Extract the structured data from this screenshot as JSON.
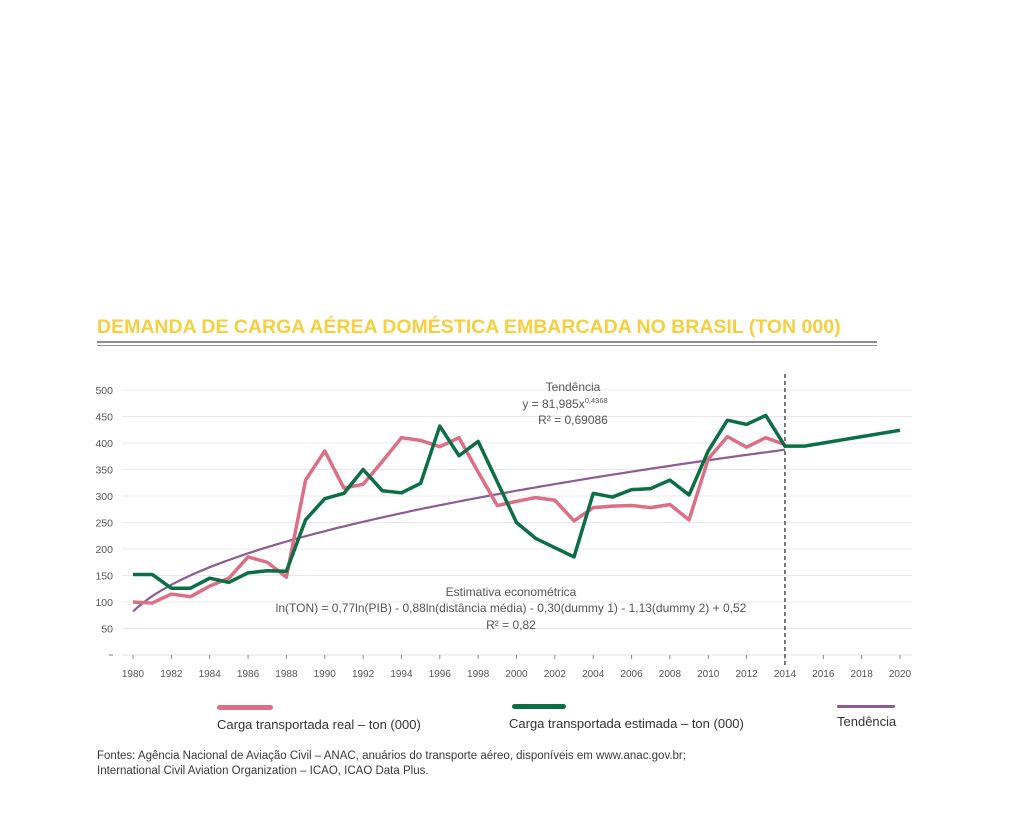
{
  "title": "DEMANDA DE CARGA AÉREA DOMÉSTICA EMBARCADA NO BRASIL (TON 000)",
  "annotations": {
    "trend_title": "Tendência",
    "trend_eq": "y = 81,985x",
    "trend_exp": "0,4368",
    "trend_r2": "R² = 0,69086",
    "econ_title": "Estimativa econométrica",
    "econ_eq": "ln(TON) = 0,77ln(PIB) - 0,88ln(distância média) - 0,30(dummy 1) - 1,13(dummy 2) + 0,52",
    "econ_r2": "R² = 0,82"
  },
  "legend": {
    "real": "Carga transportada real – ton (000)",
    "estimated": "Carga transportada estimada – ton (000)",
    "trend": "Tendência"
  },
  "source": {
    "line1": "Fontes: Agência Nacional de Aviação Civil – ANAC, anuários do transporte aéreo, disponíveis em www.anac.gov.br;",
    "line2": "International Civil Aviation Organization – ICAO, ICAO Data Plus."
  },
  "colors": {
    "title": "#f6cf3e",
    "real": "#dc6e85",
    "estimated": "#0b6e45",
    "trend": "#8e5a95",
    "grid": "#e8e8e8",
    "rule": "#8e8e8e"
  },
  "chart_data": {
    "type": "line",
    "xlim": [
      1980,
      2020
    ],
    "ylim": [
      0,
      500
    ],
    "y_ticks": [
      "50",
      "100",
      "150",
      "200",
      "250",
      "300",
      "350",
      "400",
      "450",
      "500"
    ],
    "x_ticks": [
      "1980",
      "1982",
      "1984",
      "1986",
      "1988",
      "1990",
      "1992",
      "1994",
      "1996",
      "1998",
      "2000",
      "2002",
      "2004",
      "2006",
      "2008",
      "2010",
      "2012",
      "2014",
      "2016",
      "2018",
      "2020"
    ],
    "grid": true,
    "forecast_divider_x": 2014,
    "series": [
      {
        "name": "Carga transportada real – ton (000)",
        "color": "#dc6e85",
        "x": [
          1980,
          1981,
          1982,
          1983,
          1984,
          1985,
          1986,
          1987,
          1988,
          1989,
          1990,
          1991,
          1992,
          1993,
          1994,
          1995,
          1996,
          1997,
          1998,
          1999,
          2000,
          2001,
          2002,
          2003,
          2004,
          2005,
          2006,
          2007,
          2008,
          2009,
          2010,
          2011,
          2012,
          2013,
          2014
        ],
        "y": [
          100,
          98,
          115,
          110,
          130,
          145,
          185,
          175,
          147,
          330,
          385,
          315,
          322,
          365,
          410,
          405,
          393,
          410,
          345,
          282,
          290,
          297,
          292,
          253,
          278,
          281,
          282,
          278,
          284,
          255,
          370,
          412,
          392,
          410,
          397
        ]
      },
      {
        "name": "Carga transportada estimada – ton (000)",
        "color": "#0b6e45",
        "x": [
          1980,
          1981,
          1982,
          1983,
          1984,
          1985,
          1986,
          1987,
          1988,
          1989,
          1990,
          1991,
          1992,
          1993,
          1994,
          1995,
          1996,
          1997,
          1998,
          2000,
          2001,
          2003,
          2004,
          2005,
          2006,
          2007,
          2008,
          2009,
          2010,
          2011,
          2012,
          2013,
          2014,
          2015,
          2016,
          2017,
          2018,
          2019,
          2020
        ],
        "y": [
          152,
          152,
          126,
          126,
          145,
          137,
          155,
          159,
          158,
          255,
          295,
          305,
          350,
          310,
          306,
          324,
          432,
          376,
          403,
          250,
          220,
          185,
          305,
          298,
          312,
          314,
          330,
          302,
          385,
          443,
          435,
          452,
          394,
          394,
          400,
          406,
          412,
          418,
          424
        ]
      },
      {
        "name": "Tendência",
        "color": "#8e5a95",
        "formula": "y = 81,985x^0,4368",
        "x_start": 1980,
        "x_end": 2014
      }
    ]
  }
}
